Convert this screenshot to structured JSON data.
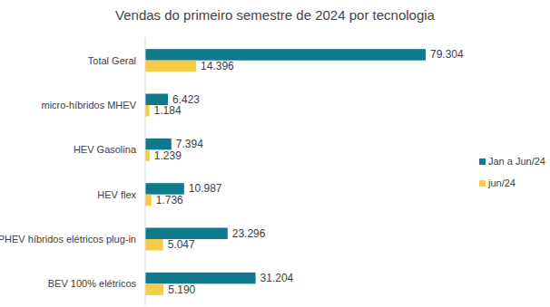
{
  "chart_data": {
    "type": "bar",
    "title": "Vendas do primeiro semestre de 2024 por tecnologia",
    "orientation": "horizontal",
    "categories": [
      "Total Geral",
      "micro-híbridos MHEV",
      "HEV Gasolina",
      "HEV flex",
      "PHEV híbridos elétricos plug-in",
      "BEV 100% elétricos"
    ],
    "series": [
      {
        "name": "Jan a Jun/24",
        "color": "#0f7a8b",
        "values": [
          79304,
          6423,
          7394,
          10987,
          23296,
          31204
        ],
        "value_labels": [
          "79.304",
          "6.423",
          "7.394",
          "10.987",
          "23.296",
          "31.204"
        ]
      },
      {
        "name": "jun/24",
        "color": "#f4cc45",
        "values": [
          14396,
          1184,
          1239,
          1736,
          5047,
          5190
        ],
        "value_labels": [
          "14.396",
          "1.184",
          "1.239",
          "1.736",
          "5.047",
          "5.190"
        ]
      }
    ],
    "xlim": [
      0,
      90000
    ],
    "data_labels": true,
    "tick_labels": "y",
    "legend": "right",
    "grid": false
  }
}
